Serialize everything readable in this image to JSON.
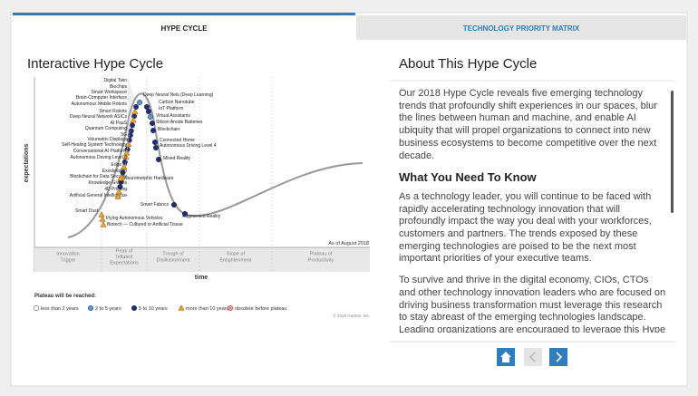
{
  "tabs": [
    "HYPE CYCLE",
    "TECHNOLOGY PRIORITY MATRIX"
  ],
  "left": {
    "title": "Interactive Hype Cycle",
    "y_axis_label": "expectations",
    "x_axis_label": "time",
    "as_of": "As of August 2018",
    "phases": [
      [
        "Innovation",
        "Trigger"
      ],
      [
        "Peak of",
        "Inflated",
        "Expectations"
      ],
      [
        "Trough of",
        "Disillusionment"
      ],
      [
        "Slope of",
        "Enlightenment"
      ],
      [
        "Plateau of",
        "Productivity"
      ]
    ],
    "legend_title": "Plateau will be reached:",
    "legend": [
      {
        "name": "less than 2 years",
        "marker": "circle",
        "color": "#ffffff",
        "technologies": []
      },
      {
        "name": "2 to 5 years",
        "marker": "circle",
        "color": "#5b9bd5",
        "technologies": [
          "Deep Neural Nets (Deep Learning)",
          "Virtual Assistants"
        ]
      },
      {
        "name": "5 to 10 years",
        "marker": "circle",
        "color": "#1f2d7a",
        "technologies": [
          "Digital Twin",
          "Smart Workspace",
          "Autonomous Mobile Robots",
          "Smart Robots",
          "Deep Neural Network ASICs",
          "AI PaaS",
          "5G",
          "Conversational AI Platform",
          "Edge AI",
          "Blockchain for Data Security",
          "Knowledge Graphs",
          "Carbon Nanotube",
          "IoT Platform",
          "Silicon Anode Batteries",
          "Blockchain",
          "Connected Home",
          "Autonomous Driving Level 4",
          "Mixed Reality",
          "Smart Fabrics",
          "Augmented Reality"
        ]
      },
      {
        "name": "more than 10 years",
        "marker": "triangle",
        "color": "#f0a030",
        "technologies": [
          "Biochips",
          "Brain-Computer Interface",
          "Quantum Computing",
          "Volumetric Displays",
          "Self-Healing System Technology",
          "Autonomous Driving Level 5",
          "Exoskeleton",
          "4D Printing",
          "Artificial General Intelligence",
          "Neuromorphic Hardware",
          "Smart Dust",
          "Flying Autonomous Vehicles",
          "Biotech — Cultured or Artificial Tissue"
        ]
      },
      {
        "name": "obsolete before plateau",
        "marker": "crossed",
        "color": "#e04040",
        "technologies": []
      }
    ],
    "copyright": "© 2018 Gartner, Inc."
  },
  "right": {
    "title": "About This Hype Cycle",
    "paragraph_1": "Our 2018 Hype Cycle reveals five emerging technology trends that profoundly shift experiences in our spaces, blur the lines between human and machine, and enable AI ubiquity that will propel organizations to connect into new business ecosystems to become competitive over the next decade.",
    "subtitle": "What You Need To Know",
    "paragraph_2": "As a technology leader, you will continue to be faced with rapidly accelerating technology innovation that will profoundly impact the way you deal with your workforces, customers and partners. The trends exposed by these emerging technologies are poised to be the next most important priorities of your executive teams.",
    "paragraph_3": "To survive and thrive in the digital economy, CIOs, CTOs and other technology innovation leaders who are focused on driving business transformation must leverage this research to stay abreast of the emerging technologies landscape. Leading organizations are encouraged to leverage this Hype Cycle to understand what are the must-watch emerging technologies in the market, their maturity and what to expect from the technologies' expectations, along with the impact and value potential. These successful organizations are able to create new models for competitive advantage, identify new"
  }
}
